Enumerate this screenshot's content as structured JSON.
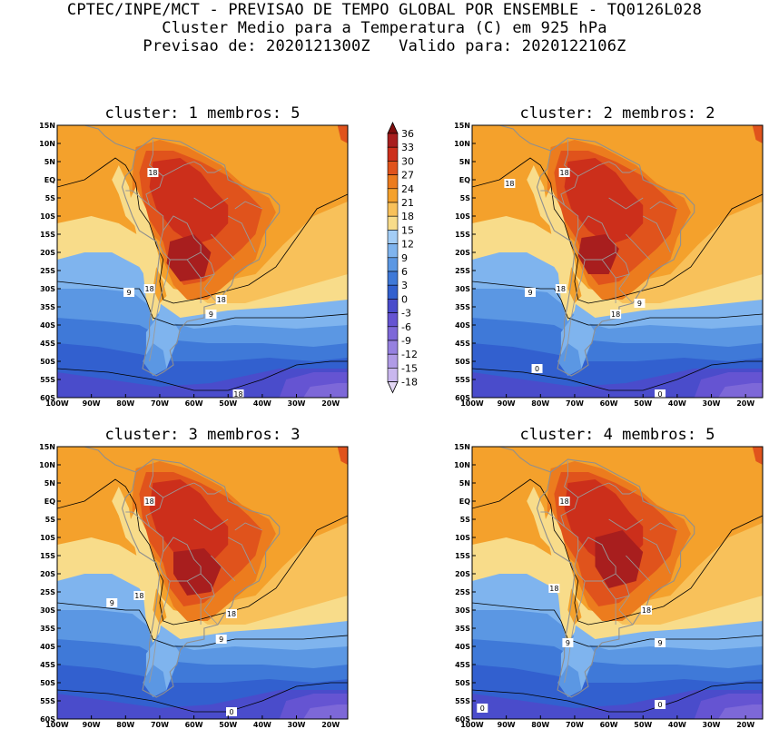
{
  "header": {
    "line1": "CPTEC/INPE/MCT - PREVISAO DE TEMPO GLOBAL POR ENSEMBLE - TQ0126L028",
    "line2": "Cluster Medio para a Temperatura (C) em 925 hPa",
    "line3": "Previsao de: 2020121300Z   Valido para: 2020122106Z"
  },
  "colors": {
    "levels": [
      -18,
      -15,
      -12,
      -9,
      -6,
      -3,
      0,
      3,
      6,
      9,
      12,
      15,
      18,
      21,
      24,
      27,
      30,
      33,
      36
    ],
    "fills": [
      "#e3d7f5",
      "#c9b7ee",
      "#b09be6",
      "#9681e0",
      "#7d68d8",
      "#6554d2",
      "#4a4ccb",
      "#3260cf",
      "#3f79d8",
      "#5b97e3",
      "#7fb4ee",
      "#a3cdf6",
      "#f8dc8a",
      "#f8c15a",
      "#f4a12c",
      "#ec7c1e",
      "#e0531c",
      "#cc2f1b",
      "#a81e1e",
      "#7f0d0d"
    ]
  },
  "chart_data": [
    {
      "type": "heatmap",
      "title": "cluster: 1   membros: 5",
      "variable": "Temperatura (C) em 925 hPa",
      "x_ticks": [
        "100W",
        "90W",
        "80W",
        "70W",
        "60W",
        "50W",
        "40W",
        "30W",
        "20W"
      ],
      "y_ticks": [
        "15N",
        "10N",
        "5N",
        "EQ",
        "5S",
        "10S",
        "15S",
        "20S",
        "25S",
        "30S",
        "35S",
        "40S",
        "45S",
        "50S",
        "55S",
        "60S"
      ],
      "xlim": [
        -100,
        -15
      ],
      "ylim": [
        -60,
        15
      ],
      "contour_labels": [
        18,
        18,
        18,
        9,
        9,
        18,
        0
      ],
      "max_region": {
        "value_range": "27-30",
        "lon": -62,
        "lat": -22
      }
    },
    {
      "type": "heatmap",
      "title": "cluster: 2   membros: 2",
      "variable": "Temperatura (C) em 925 hPa",
      "x_ticks": [
        "100W",
        "90W",
        "80W",
        "70W",
        "60W",
        "50W",
        "40W",
        "30W",
        "20W"
      ],
      "y_ticks": [
        "15N",
        "10N",
        "5N",
        "EQ",
        "5S",
        "10S",
        "15S",
        "20S",
        "25S",
        "30S",
        "35S",
        "40S",
        "45S",
        "50S",
        "55S",
        "60S"
      ],
      "xlim": [
        -100,
        -15
      ],
      "ylim": [
        -60,
        15
      ],
      "contour_labels": [
        18,
        18,
        18,
        9,
        9,
        18,
        0,
        0
      ],
      "max_region": {
        "value_range": "27-30",
        "lon": -63,
        "lat": -20
      }
    },
    {
      "type": "heatmap",
      "title": "cluster: 3   membros: 3",
      "variable": "Temperatura (C) em 925 hPa",
      "x_ticks": [
        "100W",
        "90W",
        "80W",
        "70W",
        "60W",
        "50W",
        "40W",
        "30W",
        "20W"
      ],
      "y_ticks": [
        "15N",
        "10N",
        "5N",
        "EQ",
        "5S",
        "10S",
        "15S",
        "20S",
        "25S",
        "30S",
        "35S",
        "40S",
        "45S",
        "50S",
        "55S",
        "60S"
      ],
      "xlim": [
        -100,
        -15
      ],
      "ylim": [
        -60,
        15
      ],
      "contour_labels": [
        18,
        18,
        18,
        9,
        9,
        0
      ],
      "max_region": {
        "value_range": "27-30",
        "lon": -58,
        "lat": -18
      }
    },
    {
      "type": "heatmap",
      "title": "cluster: 4   membros: 5",
      "variable": "Temperatura (C) em 925 hPa",
      "x_ticks": [
        "100W",
        "90W",
        "80W",
        "70W",
        "60W",
        "50W",
        "40W",
        "30W",
        "20W"
      ],
      "y_ticks": [
        "15N",
        "10N",
        "5N",
        "EQ",
        "5S",
        "10S",
        "15S",
        "20S",
        "25S",
        "30S",
        "35S",
        "40S",
        "45S",
        "50S",
        "55S",
        "60S"
      ],
      "xlim": [
        -100,
        -15
      ],
      "ylim": [
        -60,
        15
      ],
      "contour_labels": [
        18,
        18,
        18,
        9,
        9,
        0,
        0
      ],
      "max_region": {
        "value_range": "27-30",
        "lon": -58,
        "lat": -15
      }
    }
  ],
  "colorbar": {
    "labels": [
      "36",
      "33",
      "30",
      "27",
      "24",
      "21",
      "18",
      "15",
      "12",
      "9",
      "6",
      "3",
      "0",
      "-3",
      "-6",
      "-9",
      "-12",
      "-15",
      "-18"
    ]
  }
}
